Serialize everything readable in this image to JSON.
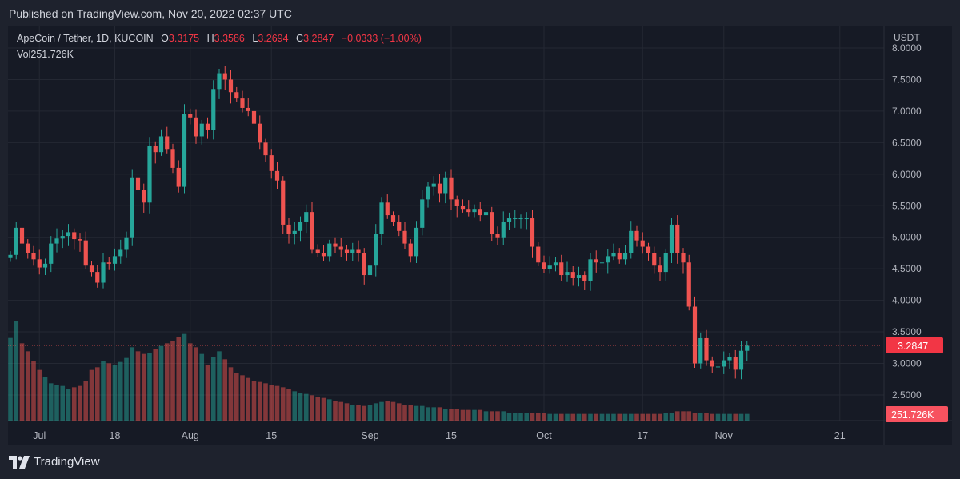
{
  "published": "Published on TradingView.com, Nov 20, 2022 02:37 UTC",
  "legend": {
    "symbol": "ApeCoin / Tether, 1D, KUCOIN",
    "o_label": "O",
    "o": "3.3175",
    "h_label": "H",
    "h": "3.3586",
    "l_label": "L",
    "l": "3.2694",
    "c_label": "C",
    "c": "3.2847",
    "change": "−0.0333 (−1.00%)",
    "vol_label": "Vol",
    "vol": "251.726K"
  },
  "footer": {
    "brand": "TradingView"
  },
  "colors": {
    "up": "#26a69a",
    "down": "#ef5350",
    "bg": "#161a25",
    "grid": "#242833",
    "text": "#b2b5be"
  },
  "chart_data": {
    "type": "candlestick",
    "currency": "USDT",
    "ylim": [
      2.17,
      8.0
    ],
    "yticks": [
      "8.0000",
      "7.5000",
      "7.0000",
      "6.5000",
      "6.0000",
      "5.5000",
      "5.0000",
      "4.5000",
      "4.0000",
      "3.5000",
      "3.0000",
      "2.5000"
    ],
    "xticks": [
      {
        "label": "Jul",
        "day": 5
      },
      {
        "label": "18",
        "day": 18
      },
      {
        "label": "Aug",
        "day": 31
      },
      {
        "label": "15",
        "day": 45
      },
      {
        "label": "Sep",
        "day": 62
      },
      {
        "label": "15",
        "day": 76
      },
      {
        "label": "Oct",
        "day": 92
      },
      {
        "label": "17",
        "day": 109
      },
      {
        "label": "Nov",
        "day": 123
      },
      {
        "label": "21",
        "day": 143
      }
    ],
    "last_price": "3.2847",
    "last_volume": "251.726K",
    "close": [
      4.72,
      5.15,
      4.9,
      4.75,
      4.65,
      4.52,
      4.58,
      4.9,
      4.98,
      5.02,
      5.08,
      4.97,
      4.95,
      4.55,
      4.45,
      4.28,
      4.6,
      4.58,
      4.7,
      4.8,
      5.0,
      5.95,
      5.75,
      5.55,
      6.45,
      6.35,
      6.6,
      6.4,
      6.1,
      5.8,
      6.95,
      6.9,
      6.6,
      6.8,
      6.7,
      7.35,
      7.6,
      7.5,
      7.3,
      7.2,
      7.05,
      7.0,
      6.8,
      6.5,
      6.3,
      6.05,
      5.9,
      5.2,
      5.05,
      5.1,
      5.25,
      5.4,
      4.8,
      4.75,
      4.7,
      4.9,
      4.85,
      4.8,
      4.75,
      4.8,
      4.75,
      4.4,
      4.55,
      5.05,
      5.55,
      5.35,
      5.25,
      5.1,
      4.9,
      4.7,
      5.15,
      5.6,
      5.8,
      5.85,
      5.7,
      5.95,
      5.6,
      5.5,
      5.45,
      5.4,
      5.45,
      5.35,
      5.4,
      5.05,
      5.0,
      5.25,
      5.3,
      5.3,
      5.3,
      5.3,
      4.85,
      4.6,
      4.5,
      4.55,
      4.6,
      4.4,
      4.45,
      4.35,
      4.4,
      4.3,
      4.65,
      4.6,
      4.6,
      4.7,
      4.75,
      4.65,
      4.75,
      5.1,
      4.95,
      4.85,
      4.75,
      4.55,
      4.45,
      4.75,
      5.2,
      4.75,
      4.6,
      3.9,
      3.0,
      3.4,
      3.05,
      2.95,
      2.95,
      3.05,
      3.1,
      2.9,
      3.2,
      3.28
    ],
    "volume": [
      0.62,
      0.75,
      0.58,
      0.52,
      0.45,
      0.38,
      0.33,
      0.28,
      0.27,
      0.26,
      0.24,
      0.25,
      0.26,
      0.3,
      0.38,
      0.4,
      0.45,
      0.43,
      0.42,
      0.44,
      0.47,
      0.55,
      0.52,
      0.5,
      0.51,
      0.54,
      0.56,
      0.58,
      0.6,
      0.63,
      0.65,
      0.58,
      0.55,
      0.5,
      0.42,
      0.48,
      0.52,
      0.46,
      0.4,
      0.36,
      0.34,
      0.32,
      0.3,
      0.29,
      0.28,
      0.27,
      0.26,
      0.25,
      0.24,
      0.22,
      0.21,
      0.2,
      0.19,
      0.18,
      0.17,
      0.16,
      0.15,
      0.14,
      0.13,
      0.12,
      0.12,
      0.11,
      0.12,
      0.13,
      0.14,
      0.15,
      0.14,
      0.13,
      0.12,
      0.12,
      0.11,
      0.11,
      0.1,
      0.1,
      0.1,
      0.09,
      0.09,
      0.09,
      0.08,
      0.08,
      0.08,
      0.08,
      0.07,
      0.07,
      0.07,
      0.07,
      0.06,
      0.06,
      0.06,
      0.06,
      0.06,
      0.06,
      0.06,
      0.05,
      0.05,
      0.05,
      0.05,
      0.05,
      0.05,
      0.05,
      0.05,
      0.05,
      0.05,
      0.05,
      0.05,
      0.05,
      0.05,
      0.05,
      0.05,
      0.05,
      0.05,
      0.05,
      0.05,
      0.06,
      0.06,
      0.07,
      0.07,
      0.07,
      0.06,
      0.06,
      0.06,
      0.05,
      0.05,
      0.05,
      0.05,
      0.05,
      0.05,
      0.05
    ],
    "volume_max_level": 0.75
  }
}
